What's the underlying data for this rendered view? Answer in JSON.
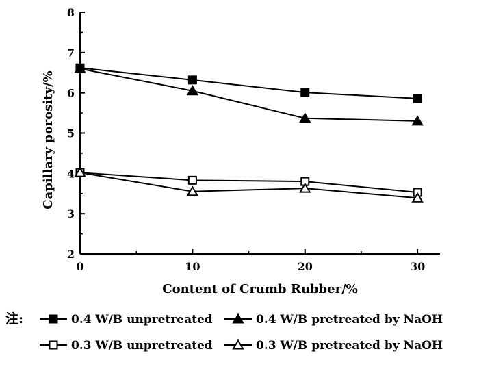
{
  "chart_data": {
    "type": "line",
    "xlabel": "Content of Crumb Rubber/%",
    "ylabel": "Capillary porosity/%",
    "x": [
      0,
      10,
      20,
      30
    ],
    "xlim": [
      0,
      32
    ],
    "ylim": [
      2,
      8
    ],
    "xticks": [
      "0",
      "10",
      "20",
      "30"
    ],
    "yticks": [
      "2",
      "3",
      "4",
      "5",
      "6",
      "7",
      "8"
    ],
    "grid": false,
    "legend_position": "bottom",
    "legend_prefix": "注:",
    "series": [
      {
        "name": "0.4 W/B unpretreated",
        "marker": "square-filled",
        "values": [
          6.62,
          6.32,
          6.01,
          5.86
        ]
      },
      {
        "name": "0.4 W/B pretreated by NaOH",
        "marker": "triangle-filled",
        "values": [
          6.6,
          6.05,
          5.37,
          5.3
        ]
      },
      {
        "name": "0.3 W/B unpretreated",
        "marker": "square-open",
        "values": [
          4.02,
          3.83,
          3.8,
          3.53
        ]
      },
      {
        "name": "0.3 W/B pretreated by NaOH",
        "marker": "triangle-open",
        "values": [
          4.02,
          3.55,
          3.63,
          3.39
        ]
      }
    ]
  }
}
